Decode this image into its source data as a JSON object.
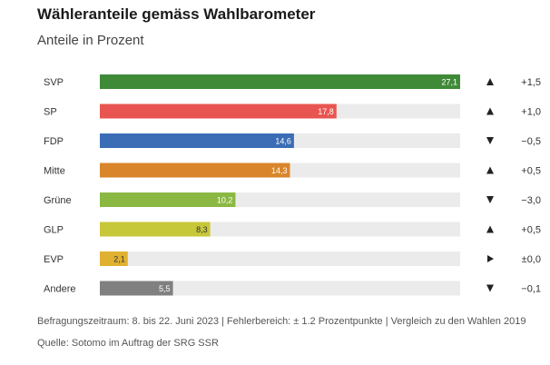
{
  "header": {
    "title": "Wähleranteile gemäss Wahlbarometer",
    "subtitle": "Anteile in Prozent"
  },
  "chart_data": {
    "type": "bar",
    "orientation": "horizontal",
    "xlim": [
      0,
      27.1
    ],
    "categories": [
      "SVP",
      "SP",
      "FDP",
      "Mitte",
      "Grüne",
      "GLP",
      "EVP",
      "Andere"
    ],
    "values": [
      27.1,
      17.8,
      14.6,
      14.3,
      10.2,
      8.3,
      2.1,
      5.5
    ],
    "value_labels": [
      "27,1",
      "17,8",
      "14,6",
      "14,3",
      "10,2",
      "8,3",
      "2,1",
      "5,5"
    ],
    "colors": [
      "#3f8a37",
      "#e85550",
      "#3a6db5",
      "#d9852b",
      "#8bb843",
      "#c7c73a",
      "#e0b030",
      "#808080"
    ],
    "label_colors": [
      "#ffffff",
      "#ffffff",
      "#ffffff",
      "#ffffff",
      "#ffffff",
      "#333333",
      "#333333",
      "#ffffff"
    ],
    "change_icons": [
      "up-triangle-icon",
      "up-triangle-icon",
      "down-triangle-icon",
      "up-triangle-icon",
      "down-triangle-icon",
      "up-triangle-icon",
      "right-triangle-icon",
      "down-triangle-icon"
    ],
    "changes": [
      "+1,5",
      "+1,0",
      "−0,5",
      "+0,5",
      "−3,0",
      "+0,5",
      "±0,0",
      "−0,1"
    ],
    "track_color": "#ebebeb"
  },
  "footer": {
    "line1": "Befragungszeitraum: 8. bis 22. Juni 2023 | Fehlerbereich: ± 1.2 Prozentpunkte | Vergleich zu den Wahlen 2019",
    "line2": "Quelle: Sotomo im Auftrag der SRG SSR"
  }
}
